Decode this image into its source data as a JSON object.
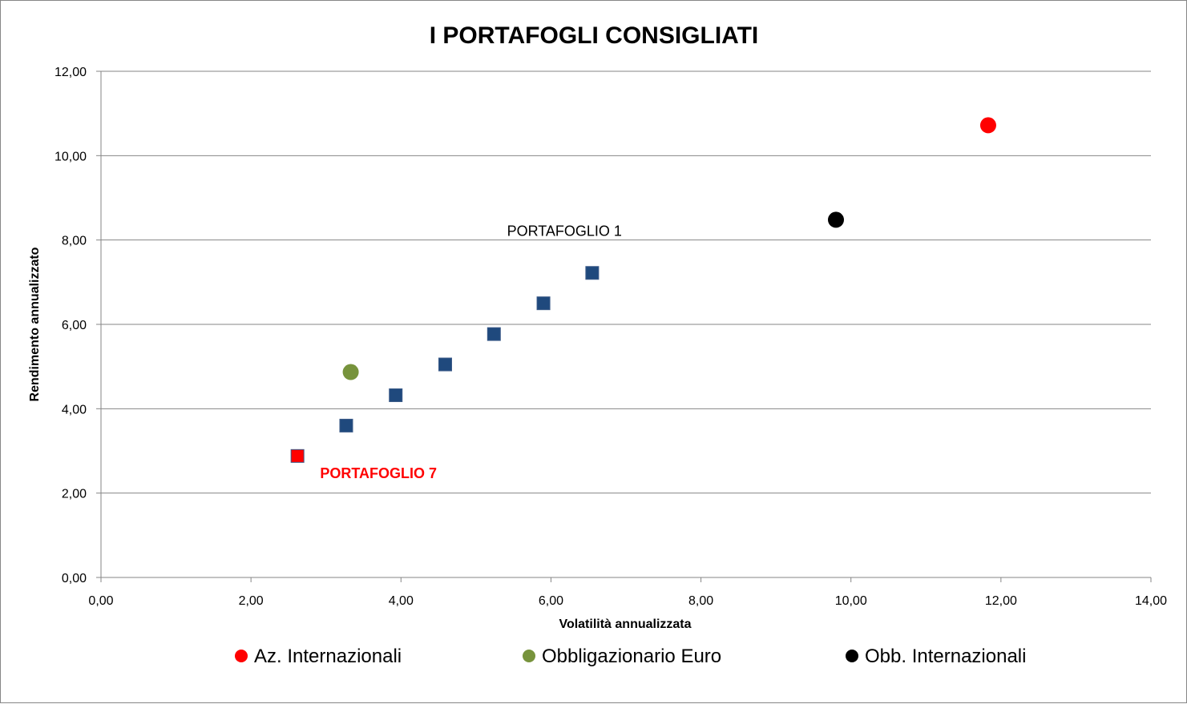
{
  "chart_data": {
    "type": "scatter",
    "title": "I PORTAFOGLI CONSIGLIATI",
    "xlabel": "Volatilità annualizzata",
    "ylabel": "Rendimento annualizzato",
    "xlim": [
      0,
      14
    ],
    "ylim": [
      0,
      12
    ],
    "xticks": [
      "0,00",
      "2,00",
      "4,00",
      "6,00",
      "8,00",
      "10,00",
      "12,00",
      "14,00"
    ],
    "yticks": [
      "0,00",
      "2,00",
      "4,00",
      "6,00",
      "8,00",
      "10,00",
      "12,00"
    ],
    "grid": "horizontal",
    "legend_position": "bottom",
    "series": [
      {
        "name": "Az. Internazionali",
        "color": "#ff0000",
        "marker": "circle",
        "points": [
          {
            "x": 11.83,
            "y": 10.72
          }
        ]
      },
      {
        "name": "Obbligazionario Euro",
        "color": "#77933c",
        "marker": "circle",
        "points": [
          {
            "x": 3.33,
            "y": 4.87
          }
        ]
      },
      {
        "name": "Obb. Internazionali",
        "color": "#000000",
        "marker": "circle",
        "points": [
          {
            "x": 9.8,
            "y": 8.48
          }
        ]
      },
      {
        "name": "",
        "color": "#1f497d",
        "marker": "square",
        "points": [
          {
            "x": 6.55,
            "y": 7.22
          },
          {
            "x": 5.9,
            "y": 6.5
          },
          {
            "x": 5.24,
            "y": 5.77
          },
          {
            "x": 4.59,
            "y": 5.05
          },
          {
            "x": 3.93,
            "y": 4.32
          },
          {
            "x": 3.27,
            "y": 3.6
          },
          {
            "x": 2.62,
            "y": 2.88,
            "color": "#ff0000"
          }
        ]
      }
    ],
    "annotations": [
      {
        "text": "PORTAFOGLIO 1",
        "x": 6.18,
        "y": 8.1,
        "style": "black"
      },
      {
        "text": "PORTAFOGLIO 7",
        "x": 3.7,
        "y": 2.35,
        "style": "red"
      }
    ]
  }
}
